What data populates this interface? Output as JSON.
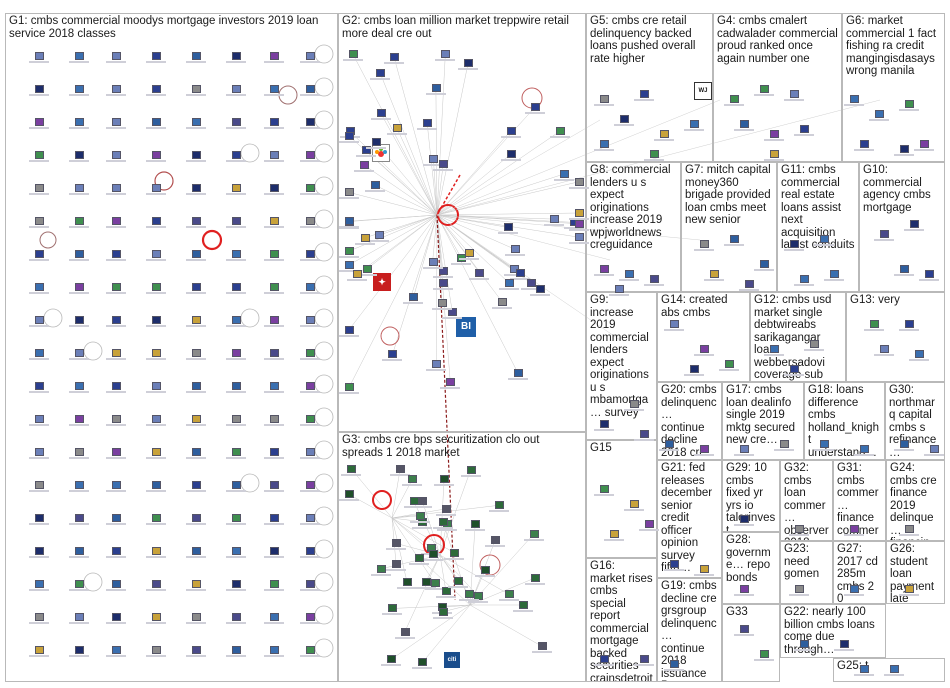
{
  "groups": [
    {
      "id": "G1",
      "label": "G1: cmbs commercial moodys mortgage investors 2019 loan service 2018 classes"
    },
    {
      "id": "G2",
      "label": "G2: cmbs loan million market treppwire retail more deal cre out"
    },
    {
      "id": "G3",
      "label": "G3: cmbs cre bps securitization clo out spreads 1 2018 market"
    },
    {
      "id": "G5",
      "label": "G5: cmbs cre retail delinquency backed loans pushed overall rate higher"
    },
    {
      "id": "G4",
      "label": "G4: cmbs cmalert cadwalader commercial proud ranked once again number one"
    },
    {
      "id": "G6",
      "label": "G6: market commercial 1 fact fishing ra credit mangingisdasays wrong manila"
    },
    {
      "id": "G8",
      "label": "G8: commercial lenders u s expect originations increase 2019 wpjworldnews creguidance"
    },
    {
      "id": "G7",
      "label": "G7: mitch capital money360 brigade provided loan cmbs meet new senior"
    },
    {
      "id": "G11",
      "label": "G11: cmbs commercial real estate loans assist next acquisition latest conduits"
    },
    {
      "id": "G10",
      "label": "G10: commercial agency cmbs mortgage"
    },
    {
      "id": "G9",
      "label": "G9: increase 2019 commercial lenders expect originations u s mbamortga… survey"
    },
    {
      "id": "G14",
      "label": "G14: created abs cmbs"
    },
    {
      "id": "G12",
      "label": "G12: cmbs usd market single debtwireabs sarikagangar loan webbersadovi coverage sub"
    },
    {
      "id": "G13",
      "label": "G13: very"
    },
    {
      "id": "G20",
      "label": "G20: cmbs delinquenc… continue decline 2018 cre"
    },
    {
      "id": "G17",
      "label": "G17: cmbs loan dealinfo single 2019 mktg secured new cre…"
    },
    {
      "id": "G18",
      "label": "G18: loans difference cmbs holland_knight understand…"
    },
    {
      "id": "G30",
      "label": "G30: northmarq capital cmbs s refinance…"
    },
    {
      "id": "G15",
      "label": "G15"
    },
    {
      "id": "G21",
      "label": "G21: fed releases december senior credit officer opinion survey fifth…"
    },
    {
      "id": "G29",
      "label": "G29: 10 cmbs fixed yr yrs io talorinvest although…"
    },
    {
      "id": "G32",
      "label": "G32: cmbs loan commer… observer 2018"
    },
    {
      "id": "G31",
      "label": "G31: cmbs commer… finance commer… cdos…"
    },
    {
      "id": "G24",
      "label": "G24: cmbs cre finance 2019 delinque… financin…"
    },
    {
      "id": "G28",
      "label": "G28: governme… repo bonds"
    },
    {
      "id": "G23",
      "label": "G23: need gomen"
    },
    {
      "id": "G27",
      "label": "G27: 2017 cd 285m cmbs 2 0 exposu…"
    },
    {
      "id": "G26",
      "label": "G26: student loan payment late"
    },
    {
      "id": "G16",
      "label": "G16: market rises cmbs special report commercial mortgage backed securities crainsdetroit"
    },
    {
      "id": "G19",
      "label": "G19: cmbs decline cre grsgroup delinquenc… continue 2018 issuance 5…"
    },
    {
      "id": "G33",
      "label": "G33"
    },
    {
      "id": "G22",
      "label": "G22: nearly 100 billion cmbs loans come due through…"
    },
    {
      "id": "G25",
      "label": "G25: t"
    }
  ],
  "icons": {
    "wsj": "WSJ",
    "bi": "BI",
    "citi": "citi",
    "nbc": "nbc-peacock-icon",
    "wpj": "WJ"
  },
  "colors": {
    "border": "#b9b9b9",
    "edge": "#c8c8c8",
    "self_loop": "#e02020",
    "heavy_edge": "#8b1a1a"
  }
}
